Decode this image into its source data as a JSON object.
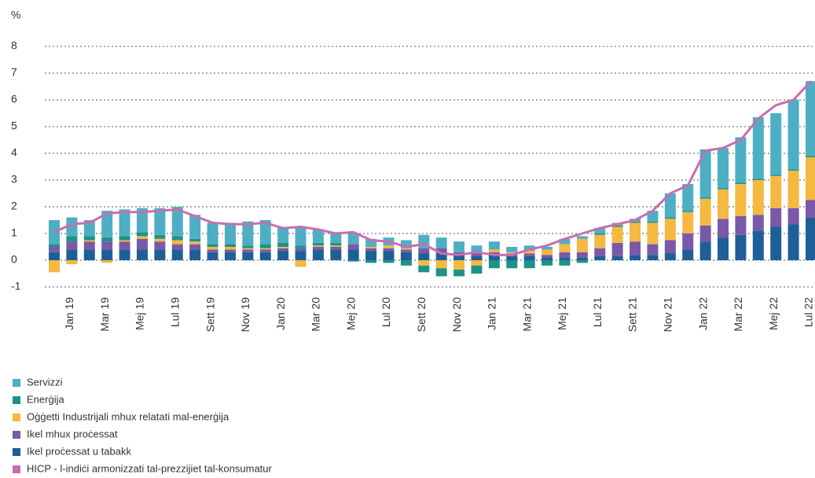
{
  "chart_data": {
    "type": "bar",
    "stacked": true,
    "y_label": "%",
    "categories": [
      null,
      "Jan 19",
      null,
      "Mar 19",
      null,
      "Mej 19",
      null,
      "Lul 19",
      null,
      "Sett 19",
      null,
      "Nov 19",
      null,
      "Jan 20",
      null,
      "Mar 20",
      null,
      "Mej 20",
      null,
      "Lul 20",
      null,
      "Sett 20",
      null,
      "Nov 20",
      null,
      "Jan 21",
      null,
      "Mar 21",
      null,
      "Mej 21",
      null,
      "Lul 21",
      null,
      "Sett 21",
      null,
      "Nov 21",
      null,
      "Jan 22",
      null,
      "Mar 22",
      null,
      "Mej 22",
      null,
      "Lul 22"
    ],
    "ylim": [
      -1,
      8
    ],
    "yticks": [
      -1,
      0,
      1,
      2,
      3,
      4,
      5,
      6,
      7,
      8
    ],
    "grid": true,
    "legend": "bottom",
    "series": [
      {
        "name": "Servizzi",
        "color": "#4eaec4",
        "values": [
          0.9,
          0.7,
          0.6,
          1.0,
          1.0,
          0.9,
          1.0,
          1.1,
          0.9,
          0.8,
          0.8,
          0.9,
          0.9,
          0.6,
          0.7,
          0.5,
          0.4,
          0.4,
          0.3,
          0.3,
          0.3,
          0.5,
          0.4,
          0.4,
          0.3,
          0.3,
          0.2,
          0.2,
          0.1,
          0.2,
          0.1,
          0.2,
          0.1,
          0.1,
          0.4,
          0.9,
          1.0,
          1.8,
          1.5,
          1.7,
          2.3,
          2.3,
          2.6,
          2.8
        ]
      },
      {
        "name": "Enerġija",
        "color": "#1b9486",
        "values": [
          0.1,
          0.2,
          0.15,
          0.15,
          0.15,
          0.15,
          0.15,
          0.15,
          0.1,
          0.1,
          0.1,
          0.1,
          0.15,
          0.15,
          0.1,
          0.1,
          0.1,
          -0.05,
          -0.1,
          -0.1,
          -0.2,
          -0.25,
          -0.3,
          -0.25,
          -0.3,
          -0.3,
          -0.3,
          -0.3,
          -0.2,
          -0.2,
          -0.1,
          0.05,
          0.05,
          0.05,
          0.05,
          0.05,
          0.05,
          0.05,
          0.05,
          0.05,
          0.05,
          0.05,
          0.05,
          0.05
        ]
      },
      {
        "name": "Oġġetti Industrijali mhux relatati mal-enerġija",
        "color": "#f5b840",
        "values": [
          -0.45,
          -0.15,
          0.05,
          -0.1,
          0.05,
          0.1,
          0.1,
          0.15,
          0.1,
          0.1,
          0.1,
          0.05,
          0.05,
          0.05,
          -0.25,
          0.05,
          0.05,
          0.0,
          0.05,
          0.1,
          0.05,
          -0.2,
          -0.3,
          -0.35,
          -0.2,
          0.1,
          0.05,
          0.1,
          0.2,
          0.3,
          0.5,
          0.5,
          0.6,
          0.7,
          0.8,
          0.8,
          0.8,
          1.0,
          1.1,
          1.2,
          1.3,
          1.2,
          1.4,
          1.6
        ]
      },
      {
        "name": "Ikel mhux proċessat",
        "color": "#7a59a8",
        "values": [
          0.2,
          0.3,
          0.3,
          0.3,
          0.3,
          0.4,
          0.3,
          0.2,
          0.2,
          0.1,
          0.1,
          0.1,
          0.1,
          0.1,
          0.1,
          0.1,
          0.1,
          0.2,
          0.1,
          0.1,
          0.1,
          0.2,
          0.2,
          0.1,
          0.1,
          0.1,
          0.1,
          0.1,
          0.1,
          0.2,
          0.2,
          0.3,
          0.5,
          0.5,
          0.4,
          0.5,
          0.6,
          0.6,
          0.7,
          0.7,
          0.6,
          0.7,
          0.6,
          0.65
        ]
      },
      {
        "name": "Ikel proċessat u tabakk",
        "color": "#1f5f98",
        "values": [
          0.3,
          0.4,
          0.4,
          0.4,
          0.4,
          0.4,
          0.4,
          0.4,
          0.4,
          0.3,
          0.3,
          0.3,
          0.3,
          0.35,
          0.35,
          0.4,
          0.4,
          0.4,
          0.35,
          0.35,
          0.3,
          0.25,
          0.25,
          0.2,
          0.15,
          0.2,
          0.15,
          0.15,
          0.1,
          0.1,
          0.1,
          0.15,
          0.15,
          0.2,
          0.2,
          0.25,
          0.4,
          0.7,
          0.85,
          0.95,
          1.1,
          1.25,
          1.35,
          1.6
        ]
      },
      {
        "name": "HICP - l-indiċi armonizzati tal-prezzijiet tal-konsumatur",
        "color": "#c86eaf",
        "type": "line",
        "values": [
          1.05,
          1.35,
          1.4,
          1.75,
          1.8,
          1.8,
          1.85,
          1.9,
          1.65,
          1.4,
          1.35,
          1.35,
          1.4,
          1.2,
          1.25,
          1.15,
          1.0,
          1.05,
          0.75,
          0.7,
          0.5,
          0.6,
          0.25,
          0.2,
          0.3,
          0.2,
          0.2,
          0.4,
          0.55,
          0.8,
          1.0,
          1.2,
          1.35,
          1.5,
          1.85,
          2.5,
          2.8,
          4.1,
          4.2,
          4.5,
          5.3,
          5.8,
          6.0,
          6.7
        ]
      }
    ]
  }
}
